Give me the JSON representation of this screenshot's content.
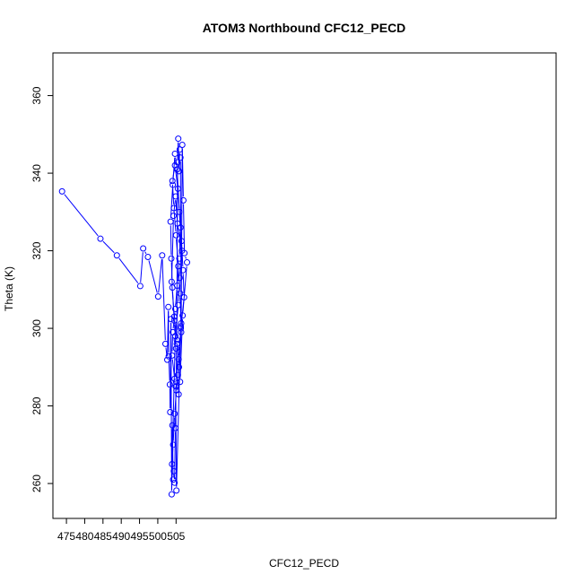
{
  "chart_data": {
    "type": "scatter",
    "title": "ATOM3 Northbound CFC12_PECD",
    "xlabel": "CFC12_PECD",
    "ylabel": "Theta (K)",
    "xlim": [
      471.3,
      609.0
    ],
    "ylim": [
      251.0,
      371.0
    ],
    "x_ticks": [
      475,
      480,
      485,
      490,
      495,
      500,
      505
    ],
    "y_ticks": [
      260,
      280,
      300,
      320,
      340,
      360
    ],
    "grid": false,
    "legend": "none",
    "series_color": "#0000ff",
    "marker": "open-circle",
    "connected": true,
    "series": [
      {
        "x": [
          473.8,
          484.3,
          488.8,
          495.2,
          496.0,
          497.3,
          500.1,
          501.2,
          502.1,
          502.6,
          502.9,
          503.0,
          503.3,
          503.4,
          503.6,
          503.8,
          504.0,
          504.2,
          504.4,
          504.6,
          504.8,
          505.0,
          505.2,
          505.4,
          505.6,
          505.8,
          506.0,
          506.2,
          506.4,
          506.7,
          507.0,
          507.3,
          508.0,
          506.8,
          506.1,
          505.5,
          505.0,
          504.5,
          504.0,
          503.7,
          503.5,
          504.1,
          504.7,
          505.3,
          505.9,
          506.5,
          506.9,
          507.2,
          506.3,
          505.7,
          505.1,
          504.6,
          504.2,
          503.9,
          504.8,
          505.6,
          506.0,
          506.6,
          505.4,
          504.9,
          504.3,
          503.8,
          504.5,
          505.2,
          505.8,
          506.4,
          506.1,
          505.6,
          505.0,
          504.4,
          504.0,
          504.7,
          505.5,
          506.2,
          505.9,
          505.3,
          504.8,
          504.1,
          503.9,
          504.6,
          505.7,
          506.3,
          505.1,
          504.9
        ],
        "y": [
          335.3,
          323.1,
          318.8,
          310.9,
          320.6,
          318.4,
          308.2,
          318.8,
          296.0,
          291.9,
          305.5,
          292.8,
          285.5,
          278.4,
          302.4,
          257.2,
          275.0,
          261.0,
          263.2,
          260.2,
          274.3,
          286.2,
          296.0,
          342.8,
          348.9,
          340.5,
          346.1,
          344.0,
          301.3,
          347.3,
          333.0,
          319.4,
          317.0,
          303.3,
          286.2,
          288.0,
          294.8,
          302.0,
          310.5,
          318.0,
          327.5,
          337.0,
          345.0,
          341.0,
          330.0,
          322.5,
          315.0,
          308.0,
          300.0,
          292.0,
          284.0,
          278.0,
          270.0,
          265.0,
          298.0,
          306.0,
          313.0,
          320.0,
          327.0,
          334.0,
          329.0,
          312.0,
          303.0,
          297.0,
          290.0,
          299.0,
          309.0,
          316.0,
          324.0,
          331.0,
          338.0,
          342.0,
          336.0,
          326.0,
          318.0,
          311.0,
          305.0,
          299.0,
          293.0,
          287.0,
          283.0,
          300.5,
          258.2,
          285.0
        ]
      }
    ]
  }
}
